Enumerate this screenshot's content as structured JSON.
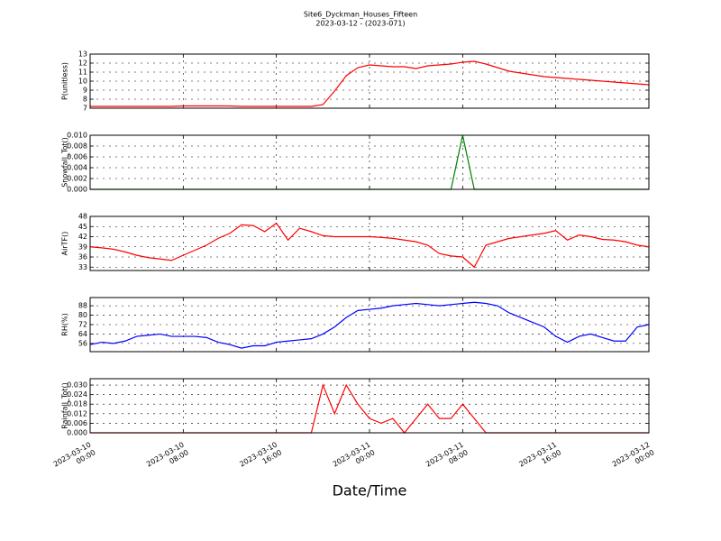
{
  "chart_data": {
    "type": "line",
    "title": "Site6_Dyckman_Houses_Fifteen",
    "subtitle": "2023-03-12 - (2023-071)",
    "xlabel": "Date/Time",
    "grid": true,
    "xlim": [
      "2023-03-10 00:00",
      "2023-03-12 00:00"
    ],
    "xticks": [
      "2023-03-10 00:00",
      "2023-03-10 08:00",
      "2023-03-10 16:00",
      "2023-03-11 00:00",
      "2023-03-11 08:00",
      "2023-03-11 16:00",
      "2023-03-12 00:00"
    ],
    "x": [
      "2023-03-10 00:00",
      "2023-03-10 01:00",
      "2023-03-10 02:00",
      "2023-03-10 03:00",
      "2023-03-10 04:00",
      "2023-03-10 05:00",
      "2023-03-10 06:00",
      "2023-03-10 07:00",
      "2023-03-10 08:00",
      "2023-03-10 09:00",
      "2023-03-10 10:00",
      "2023-03-10 11:00",
      "2023-03-10 12:00",
      "2023-03-10 13:00",
      "2023-03-10 14:00",
      "2023-03-10 15:00",
      "2023-03-10 16:00",
      "2023-03-10 17:00",
      "2023-03-10 18:00",
      "2023-03-10 19:00",
      "2023-03-10 20:00",
      "2023-03-10 21:00",
      "2023-03-10 22:00",
      "2023-03-10 23:00",
      "2023-03-11 00:00",
      "2023-03-11 01:00",
      "2023-03-11 02:00",
      "2023-03-11 03:00",
      "2023-03-11 04:00",
      "2023-03-11 05:00",
      "2023-03-11 06:00",
      "2023-03-11 07:00",
      "2023-03-11 08:00",
      "2023-03-11 09:00",
      "2023-03-11 10:00",
      "2023-03-11 11:00",
      "2023-03-11 12:00",
      "2023-03-11 13:00",
      "2023-03-11 14:00",
      "2023-03-11 15:00",
      "2023-03-11 16:00",
      "2023-03-11 17:00",
      "2023-03-11 18:00",
      "2023-03-11 19:00",
      "2023-03-11 20:00",
      "2023-03-11 21:00",
      "2023-03-11 22:00",
      "2023-03-11 23:00",
      "2023-03-12 00:00"
    ],
    "panels": [
      {
        "ylabel": "P(unitless)",
        "ylim": [
          7,
          13
        ],
        "yticks": [
          7,
          8,
          9,
          10,
          11,
          12,
          13
        ],
        "series": [
          {
            "color": "#ff0000",
            "values": [
              7.2,
              7.2,
              7.2,
              7.2,
              7.2,
              7.2,
              7.2,
              7.2,
              7.25,
              7.25,
              7.25,
              7.25,
              7.25,
              7.2,
              7.2,
              7.2,
              7.2,
              7.2,
              7.2,
              7.2,
              7.4,
              8.9,
              10.6,
              11.5,
              11.8,
              11.7,
              11.6,
              11.6,
              11.4,
              11.7,
              11.8,
              11.9,
              12.1,
              12.2,
              11.9,
              11.5,
              11.1,
              10.9,
              10.7,
              10.5,
              10.4,
              10.3,
              10.2,
              10.1,
              10.0,
              9.9,
              9.8,
              9.7,
              9.6
            ]
          }
        ]
      },
      {
        "ylabel": "Snowfall_Tot()",
        "ylim": [
          0,
          0.01
        ],
        "yticks": [
          {
            "value": 0,
            "label": "0.000"
          },
          {
            "value": 0.002,
            "label": "0.002"
          },
          {
            "value": 0.004,
            "label": "0.004"
          },
          {
            "value": 0.006,
            "label": "0.006"
          },
          {
            "value": 0.008,
            "label": "0.008"
          },
          {
            "value": 0.01,
            "label": "0.010"
          }
        ],
        "series": [
          {
            "color": "#008000",
            "values": [
              0,
              0,
              0,
              0,
              0,
              0,
              0,
              0,
              0,
              0,
              0,
              0,
              0,
              0,
              0,
              0,
              0,
              0,
              0,
              0,
              0,
              0,
              0,
              0,
              0,
              0,
              0,
              0,
              0,
              0,
              0,
              0,
              0.01,
              0,
              0,
              0,
              0,
              0,
              0,
              0,
              0,
              0,
              0,
              0,
              0,
              0,
              0,
              0,
              0
            ]
          }
        ]
      },
      {
        "ylabel": "AirTF()",
        "ylim": [
          32,
          48
        ],
        "yticks": [
          33,
          36,
          39,
          42,
          45,
          48
        ],
        "series": [
          {
            "color": "#ff0000",
            "values": [
              39,
              38.7,
              38.3,
              37.5,
              36.5,
              35.8,
              35.4,
              35,
              36.5,
              38,
              39.5,
              41.5,
              43,
              45.5,
              45.3,
              43.5,
              46,
              41,
              44.5,
              43.5,
              42.3,
              42,
              42,
              42,
              42,
              41.8,
              41.5,
              41,
              40.5,
              39.5,
              37,
              36.3,
              36,
              33,
              39.5,
              40.5,
              41.5,
              42,
              42.5,
              43,
              43.8,
              41,
              42.5,
              42,
              41.2,
              41,
              40.5,
              39.5,
              39
            ]
          }
        ]
      },
      {
        "ylabel": "RH(%)",
        "ylim": [
          49,
          95
        ],
        "yticks": [
          56,
          64,
          72,
          80,
          88
        ],
        "series": [
          {
            "color": "#0000ff",
            "values": [
              55,
              57,
              56,
              58,
              62,
              63,
              64,
              62,
              62,
              62,
              61,
              57,
              55,
              52,
              54,
              54,
              57,
              58,
              59,
              60,
              64,
              70,
              78,
              84,
              85,
              86,
              88,
              89,
              90,
              89,
              88,
              89,
              90,
              91,
              90,
              88,
              82,
              78,
              74,
              70,
              62,
              57,
              62,
              64,
              61,
              58,
              58,
              70,
              72
            ]
          }
        ]
      },
      {
        "ylabel": "Rainfall_Tot()",
        "ylim": [
          0,
          0.034
        ],
        "yticks": [
          {
            "value": 0,
            "label": "0.000"
          },
          {
            "value": 0.006,
            "label": "0.006"
          },
          {
            "value": 0.012,
            "label": "0.012"
          },
          {
            "value": 0.018,
            "label": "0.018"
          },
          {
            "value": 0.024,
            "label": "0.024"
          },
          {
            "value": 0.03,
            "label": "0.030"
          }
        ],
        "series": [
          {
            "color": "#ff0000",
            "values": [
              0,
              0,
              0,
              0,
              0,
              0,
              0,
              0,
              0,
              0,
              0,
              0,
              0,
              0,
              0,
              0,
              0,
              0,
              0,
              0,
              0.03,
              0.012,
              0.03,
              0.018,
              0.009,
              0.006,
              0.009,
              0,
              0.009,
              0.018,
              0.009,
              0.009,
              0.018,
              0.009,
              0,
              0,
              0,
              0,
              0,
              0,
              0,
              0,
              0,
              0,
              0,
              0,
              0,
              0,
              0
            ]
          }
        ]
      }
    ]
  }
}
